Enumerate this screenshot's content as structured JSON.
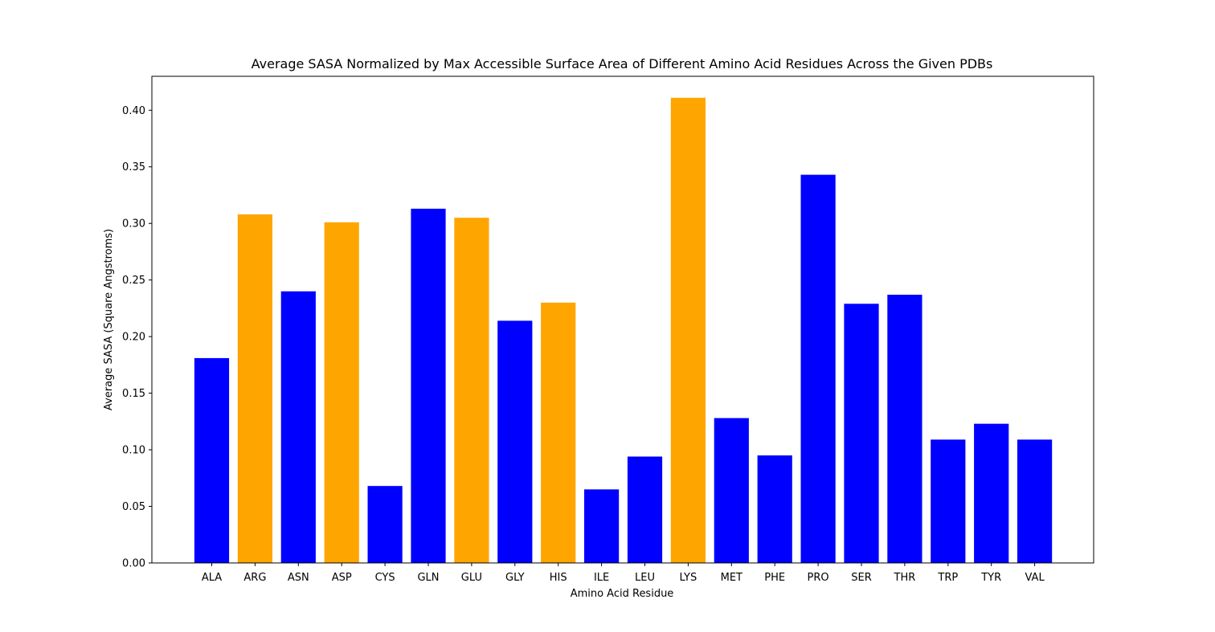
{
  "chart_data": {
    "type": "bar",
    "title": "Average SASA Normalized by Max Accessible Surface Area of Different Amino Acid Residues Across the Given PDBs",
    "xlabel": "Amino Acid Residue",
    "ylabel": "Average SASA (Square Angstroms)",
    "categories": [
      "ALA",
      "ARG",
      "ASN",
      "ASP",
      "CYS",
      "GLN",
      "GLU",
      "GLY",
      "HIS",
      "ILE",
      "LEU",
      "LYS",
      "MET",
      "PHE",
      "PRO",
      "SER",
      "THR",
      "TRP",
      "TYR",
      "VAL"
    ],
    "values": [
      0.181,
      0.308,
      0.24,
      0.301,
      0.068,
      0.313,
      0.305,
      0.214,
      0.23,
      0.065,
      0.094,
      0.411,
      0.128,
      0.095,
      0.343,
      0.229,
      0.237,
      0.109,
      0.123,
      0.109
    ],
    "bar_colors": [
      "#0000ff",
      "#ffa500",
      "#0000ff",
      "#ffa500",
      "#0000ff",
      "#0000ff",
      "#ffa500",
      "#0000ff",
      "#ffa500",
      "#0000ff",
      "#0000ff",
      "#ffa500",
      "#0000ff",
      "#0000ff",
      "#0000ff",
      "#0000ff",
      "#0000ff",
      "#0000ff",
      "#0000ff",
      "#0000ff"
    ],
    "ylim": [
      0,
      0.43
    ],
    "yticks": [
      "0.00",
      "0.05",
      "0.10",
      "0.15",
      "0.20",
      "0.25",
      "0.30",
      "0.35",
      "0.40"
    ],
    "grid": false,
    "legend": "none"
  }
}
